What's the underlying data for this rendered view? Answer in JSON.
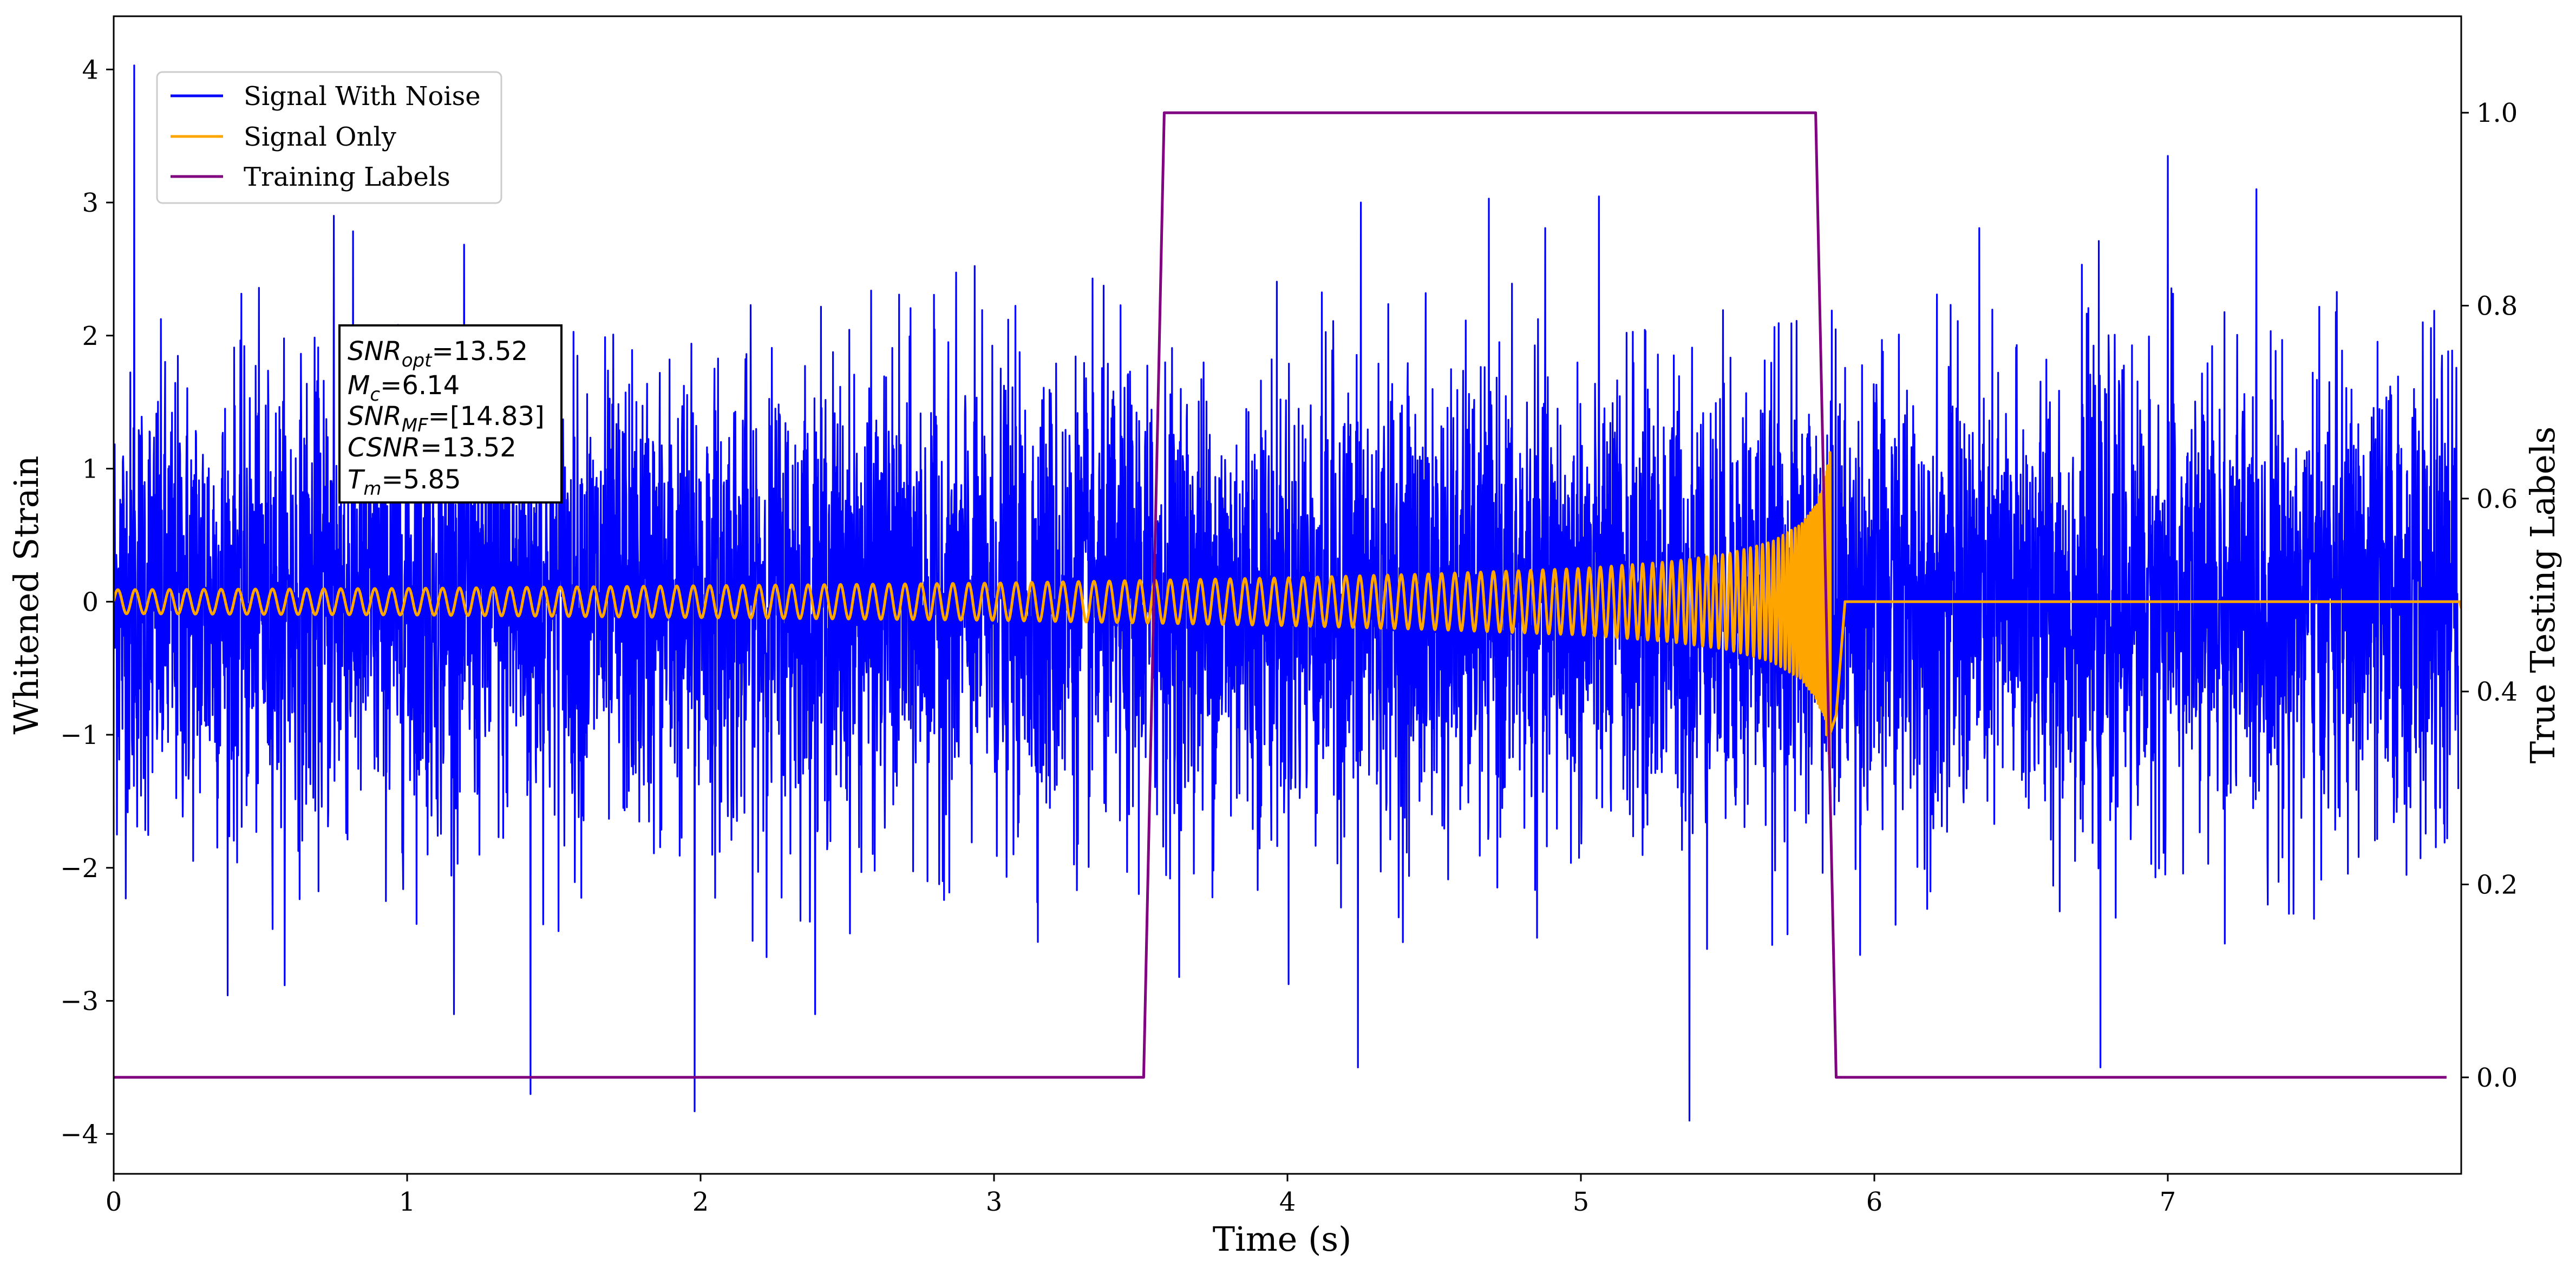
{
  "chart_data": {
    "type": "line",
    "xlabel": "Time (s)",
    "ylabel": "Whitened Strain",
    "y2label": "True Testing Labels",
    "xlim": [
      0,
      8
    ],
    "ylim": [
      -4.3,
      4.4
    ],
    "y2lim": [
      -0.1,
      1.1
    ],
    "xticks": [
      "0",
      "1",
      "2",
      "3",
      "4",
      "5",
      "6",
      "7"
    ],
    "yticks": [
      "4",
      "3",
      "2",
      "1",
      "0",
      "−1",
      "−2",
      "−3",
      "−4"
    ],
    "y2ticks": [
      "1.0",
      "0.8",
      "0.6",
      "0.4",
      "0.2",
      "0.0"
    ],
    "legend_position": "upper-left",
    "grid": false,
    "series": [
      {
        "name": "Signal With Noise",
        "color": "#0000ff",
        "axis": "left",
        "description_values": {
          "approx_range": [
            -3.9,
            4.03
          ],
          "notable_peaks": [
            [
              0.07,
              4.03
            ],
            [
              0.75,
              2.9
            ],
            [
              4.25,
              3.0
            ],
            [
              7.0,
              3.35
            ]
          ],
          "notable_troughs": [
            [
              1.42,
              -3.7
            ],
            [
              1.98,
              -3.83
            ],
            [
              5.37,
              -3.9
            ],
            [
              4.24,
              -3.5
            ],
            [
              6.77,
              -3.5
            ]
          ]
        }
      },
      {
        "name": "Signal Only",
        "color": "#ffa500",
        "axis": "left",
        "envelope": {
          "x": [
            0,
            1,
            2,
            3,
            3.5,
            4,
            4.5,
            5,
            5.3,
            5.5,
            5.65,
            5.75,
            5.8,
            5.83,
            5.85
          ],
          "amplitude": [
            0.09,
            0.1,
            0.12,
            0.14,
            0.16,
            0.18,
            0.21,
            0.25,
            0.3,
            0.36,
            0.45,
            0.58,
            0.72,
            0.9,
            1.22
          ]
        },
        "merger_time": 5.85
      },
      {
        "name": "Training Labels",
        "color": "#800080",
        "axis": "right",
        "x": [
          0,
          3.51,
          3.58,
          5.8,
          5.87,
          7.95
        ],
        "y": [
          0,
          0,
          1,
          1,
          0,
          0
        ]
      }
    ],
    "annotation": {
      "snr_opt": "=13.52",
      "mc": "=6.14",
      "snr_mf": "=[14.83]",
      "csnr": "=13.52",
      "tm": "=5.85"
    }
  }
}
